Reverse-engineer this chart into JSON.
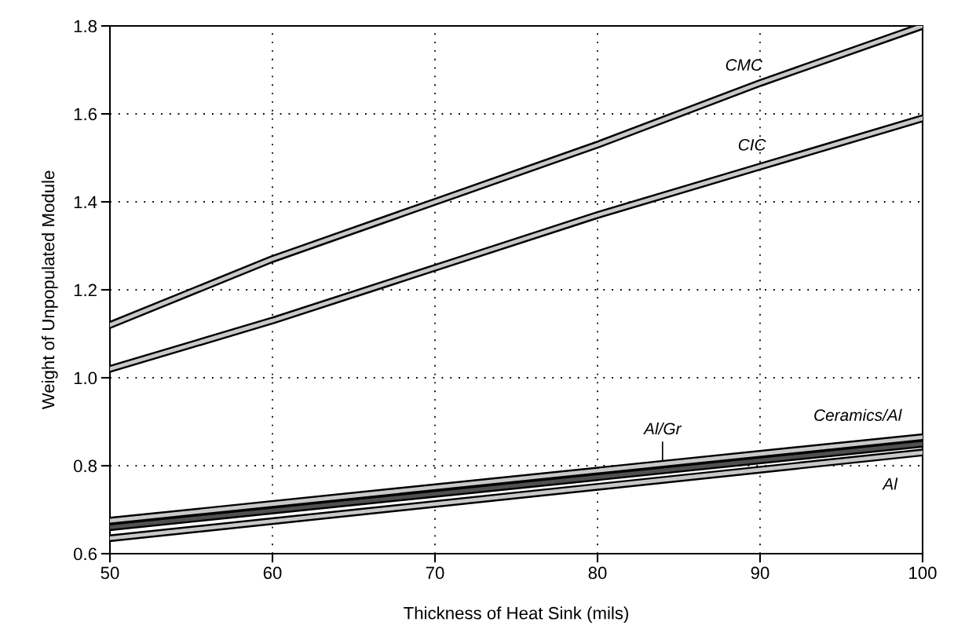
{
  "chart_data": {
    "type": "line",
    "xlabel": "Thickness of Heat Sink (mils)",
    "ylabel": "Weight of Unpopulated Module",
    "xlim": [
      50,
      100
    ],
    "ylim": [
      0.6,
      1.8
    ],
    "xticks": [
      50,
      60,
      70,
      80,
      90,
      100
    ],
    "yticks": [
      {
        "value": 0.6,
        "label": "0.6"
      },
      {
        "value": 0.8,
        "label": "0.8"
      },
      {
        "value": 1.0,
        "label": "1.0"
      },
      {
        "value": 1.2,
        "label": "1.2"
      },
      {
        "value": 1.4,
        "label": "1.4"
      },
      {
        "value": 1.6,
        "label": "1.6"
      },
      {
        "value": 1.8,
        "label": "1.8"
      }
    ],
    "grid": true,
    "line_style": "solid",
    "marker": "none",
    "series": [
      {
        "name": "CMC",
        "color": "#c8c8c8",
        "x": [
          50,
          60,
          70,
          80,
          90,
          100
        ],
        "values": [
          1.12,
          1.27,
          1.4,
          1.53,
          1.67,
          1.8
        ]
      },
      {
        "name": "CIC",
        "color": "#c8c8c8",
        "x": [
          50,
          60,
          70,
          80,
          90,
          100
        ],
        "values": [
          1.02,
          1.13,
          1.25,
          1.37,
          1.48,
          1.59
        ]
      },
      {
        "name": "Al/Gr",
        "color": "#505050",
        "x": [
          50,
          100
        ],
        "values": [
          0.66,
          0.85
        ]
      },
      {
        "name": "Ceramics/Al",
        "color": "#c8c8c8",
        "x": [
          50,
          100
        ],
        "values": [
          0.675,
          0.865
        ]
      },
      {
        "name": "Al",
        "color": "#c8c8c8",
        "x": [
          50,
          100
        ],
        "values": [
          0.635,
          0.83
        ]
      }
    ]
  }
}
